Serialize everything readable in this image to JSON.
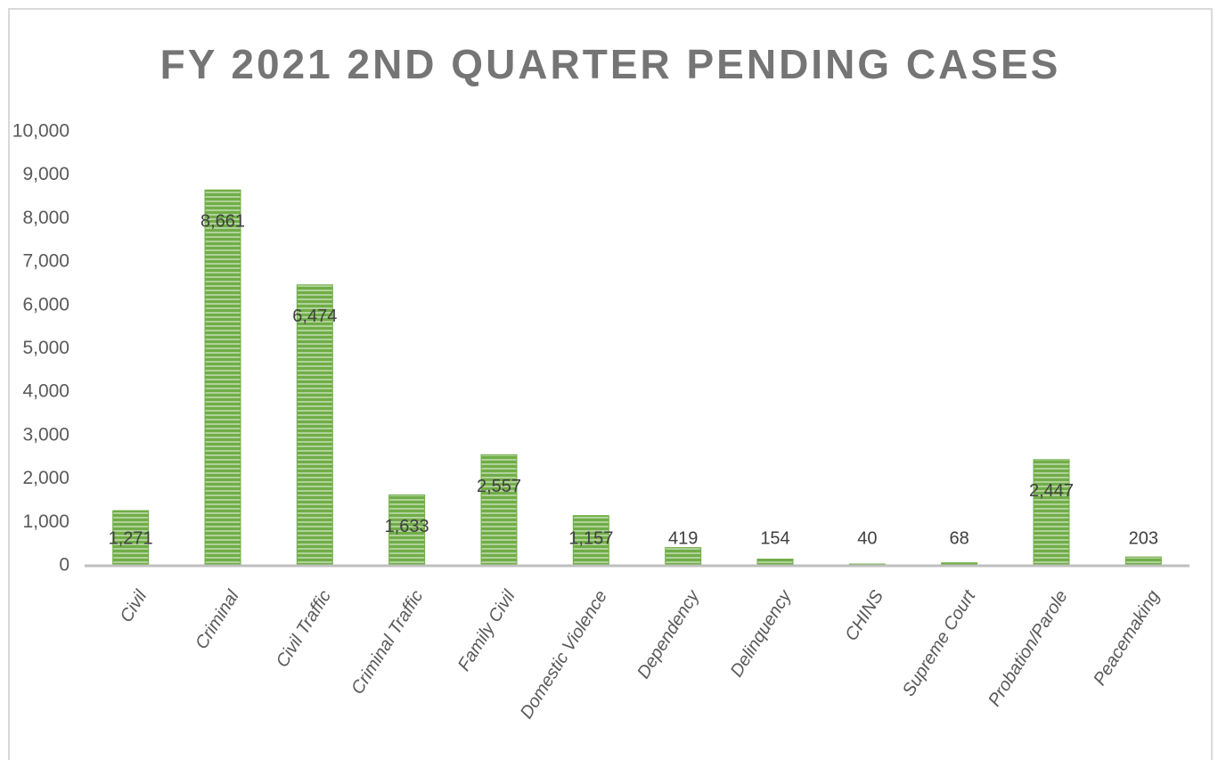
{
  "chart_data": {
    "type": "bar",
    "title": "FY 2021 2ND QUARTER PENDING CASES",
    "categories": [
      "Civil",
      "Criminal",
      "Civil Traffic",
      "Criminal Traffic",
      "Family Civil",
      "Domestic Violence",
      "Dependency",
      "Delinquency",
      "CHINS",
      "Supreme Court",
      "Probation/Parole",
      "Peacemaking"
    ],
    "values": [
      1271,
      8661,
      6474,
      1633,
      2557,
      1157,
      419,
      154,
      40,
      68,
      2447,
      203
    ],
    "value_labels": [
      "1,271",
      "8,661",
      "6,474",
      "1,633",
      "2,557",
      "1,157",
      "419",
      "154",
      "40",
      "68",
      "2,447",
      "203"
    ],
    "color": "#70ad47",
    "ylim": [
      0,
      10000
    ],
    "yticks": [
      0,
      {
        "value": 1000,
        "label": "1,000"
      },
      {
        "value": 2000,
        "label": "2,000"
      },
      {
        "value": 3000,
        "label": "3,000"
      },
      {
        "value": 4000,
        "label": "4,000"
      },
      {
        "value": 5000,
        "label": "5,000"
      },
      {
        "value": 6000,
        "label": "6,000"
      },
      {
        "value": 7000,
        "label": "7,000"
      },
      {
        "value": 8000,
        "label": "8,000"
      },
      {
        "value": 9000,
        "label": "9,000"
      },
      {
        "value": 10000,
        "label": "10,000"
      }
    ],
    "grid": false
  }
}
